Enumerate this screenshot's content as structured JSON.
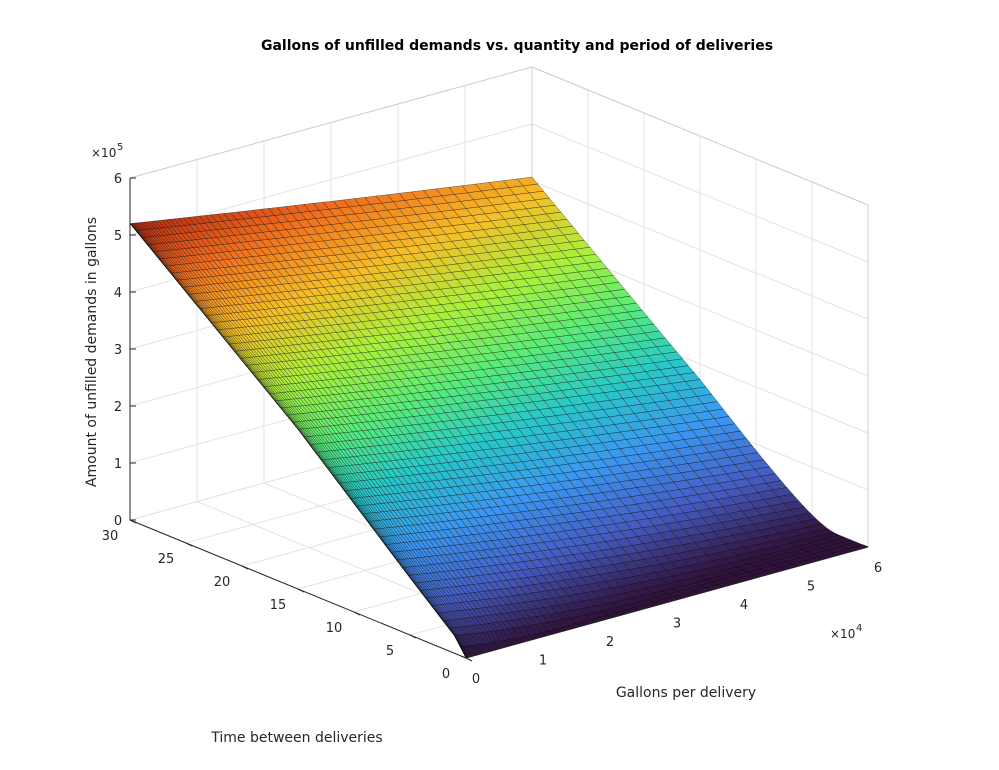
{
  "chart_data": {
    "type": "surface",
    "title": "Gallons of unfilled demands vs. quantity and period of deliveries",
    "xlabel": "Gallons per delivery",
    "ylabel": "Time between deliveries",
    "zlabel": "Amount of unfilled demands in gallons",
    "x_range": [
      0,
      60000
    ],
    "y_range": [
      0,
      30
    ],
    "z_range": [
      0,
      600000
    ],
    "x_ticks": [
      0,
      1,
      2,
      3,
      4,
      5,
      6
    ],
    "x_ticks_label": [
      "0",
      "1",
      "2",
      "3",
      "4",
      "5",
      "6"
    ],
    "x_exponent": "×10",
    "x_exponent_power": "4",
    "y_ticks": [
      0,
      5,
      10,
      15,
      20,
      25,
      30
    ],
    "y_ticks_label": [
      "0",
      "5",
      "10",
      "15",
      "20",
      "25",
      "30"
    ],
    "z_ticks": [
      0,
      1,
      2,
      3,
      4,
      5,
      6
    ],
    "z_ticks_label": [
      "0",
      "1",
      "2",
      "3",
      "4",
      "5",
      "6"
    ],
    "z_exponent": "×10",
    "z_exponent_power": "5",
    "grid": true,
    "colormap": "turbo",
    "ridge_at_zero_gallons": {
      "time_between_deliveries": [
        1,
        5,
        10,
        15,
        20,
        25,
        30
      ],
      "unfilled_gallons": [
        30000,
        100000,
        190000,
        280000,
        360000,
        440000,
        520000
      ]
    },
    "plateau_unfilled_gallons": 0
  }
}
